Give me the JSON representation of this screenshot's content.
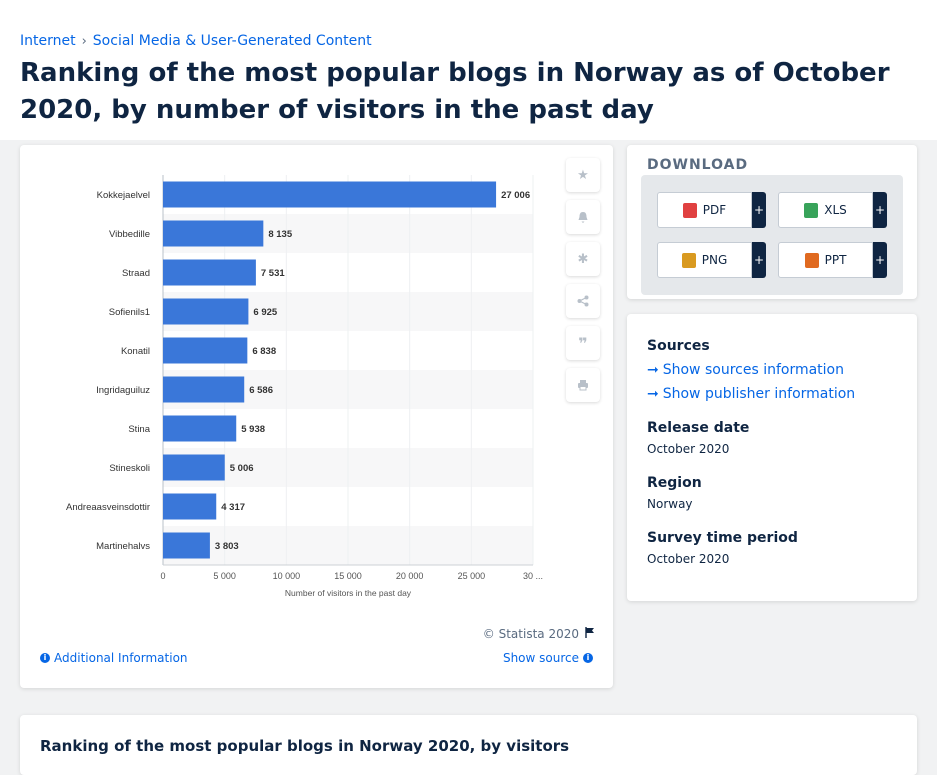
{
  "breadcrumb": {
    "items": [
      "Internet",
      "Social Media & User-Generated Content"
    ],
    "separator": "›"
  },
  "page_title": "Ranking of the most popular blogs in Norway as of October 2020, by number of visitors in the past day",
  "colors": {
    "bar": "#3a77d9",
    "accent": "#0666e5",
    "title": "#0f2542"
  },
  "chart_data": {
    "type": "bar",
    "orientation": "horizontal",
    "categories": [
      "Kokkejaelvel",
      "Vibbedille",
      "Straad",
      "Sofienils1",
      "Konatil",
      "Ingridaguiluz",
      "Stina",
      "Stineskoli",
      "Andreaasveinsdottir",
      "Martinehalvs"
    ],
    "values": [
      27006,
      8135,
      7531,
      6925,
      6838,
      6586,
      5938,
      5006,
      4317,
      3803
    ],
    "value_labels": [
      "27 006",
      "8 135",
      "7 531",
      "6 925",
      "6 838",
      "6 586",
      "5 938",
      "5 006",
      "4 317",
      "3 803"
    ],
    "xlabel": "Number of visitors in the past day",
    "xticks": [
      "0",
      "5 000",
      "10 000",
      "15 000",
      "20 000",
      "25 000",
      "30 ..."
    ],
    "xlim": [
      0,
      30000
    ],
    "grid": true
  },
  "chart_footer": {
    "copyright": "© Statista 2020",
    "additional_info": "Additional Information",
    "show_source": "Show source"
  },
  "side_tools": [
    "star-icon",
    "bell-icon",
    "gear-icon",
    "share-icon",
    "quote-icon",
    "print-icon"
  ],
  "download": {
    "title": "DOWNLOAD",
    "buttons": [
      {
        "label": "PDF",
        "icon": "pdf-file-icon"
      },
      {
        "label": "XLS",
        "icon": "xls-file-icon"
      },
      {
        "label": "PNG",
        "icon": "png-file-icon"
      },
      {
        "label": "PPT",
        "icon": "ppt-file-icon"
      }
    ],
    "plus": "+"
  },
  "info": {
    "sources_label": "Sources",
    "show_sources": "Show sources information",
    "show_publisher": "Show publisher information",
    "release_date_label": "Release date",
    "release_date": "October 2020",
    "region_label": "Region",
    "region": "Norway",
    "survey_label": "Survey time period",
    "survey": "October 2020"
  },
  "bottom_title": "Ranking of the most popular blogs in Norway 2020, by visitors"
}
